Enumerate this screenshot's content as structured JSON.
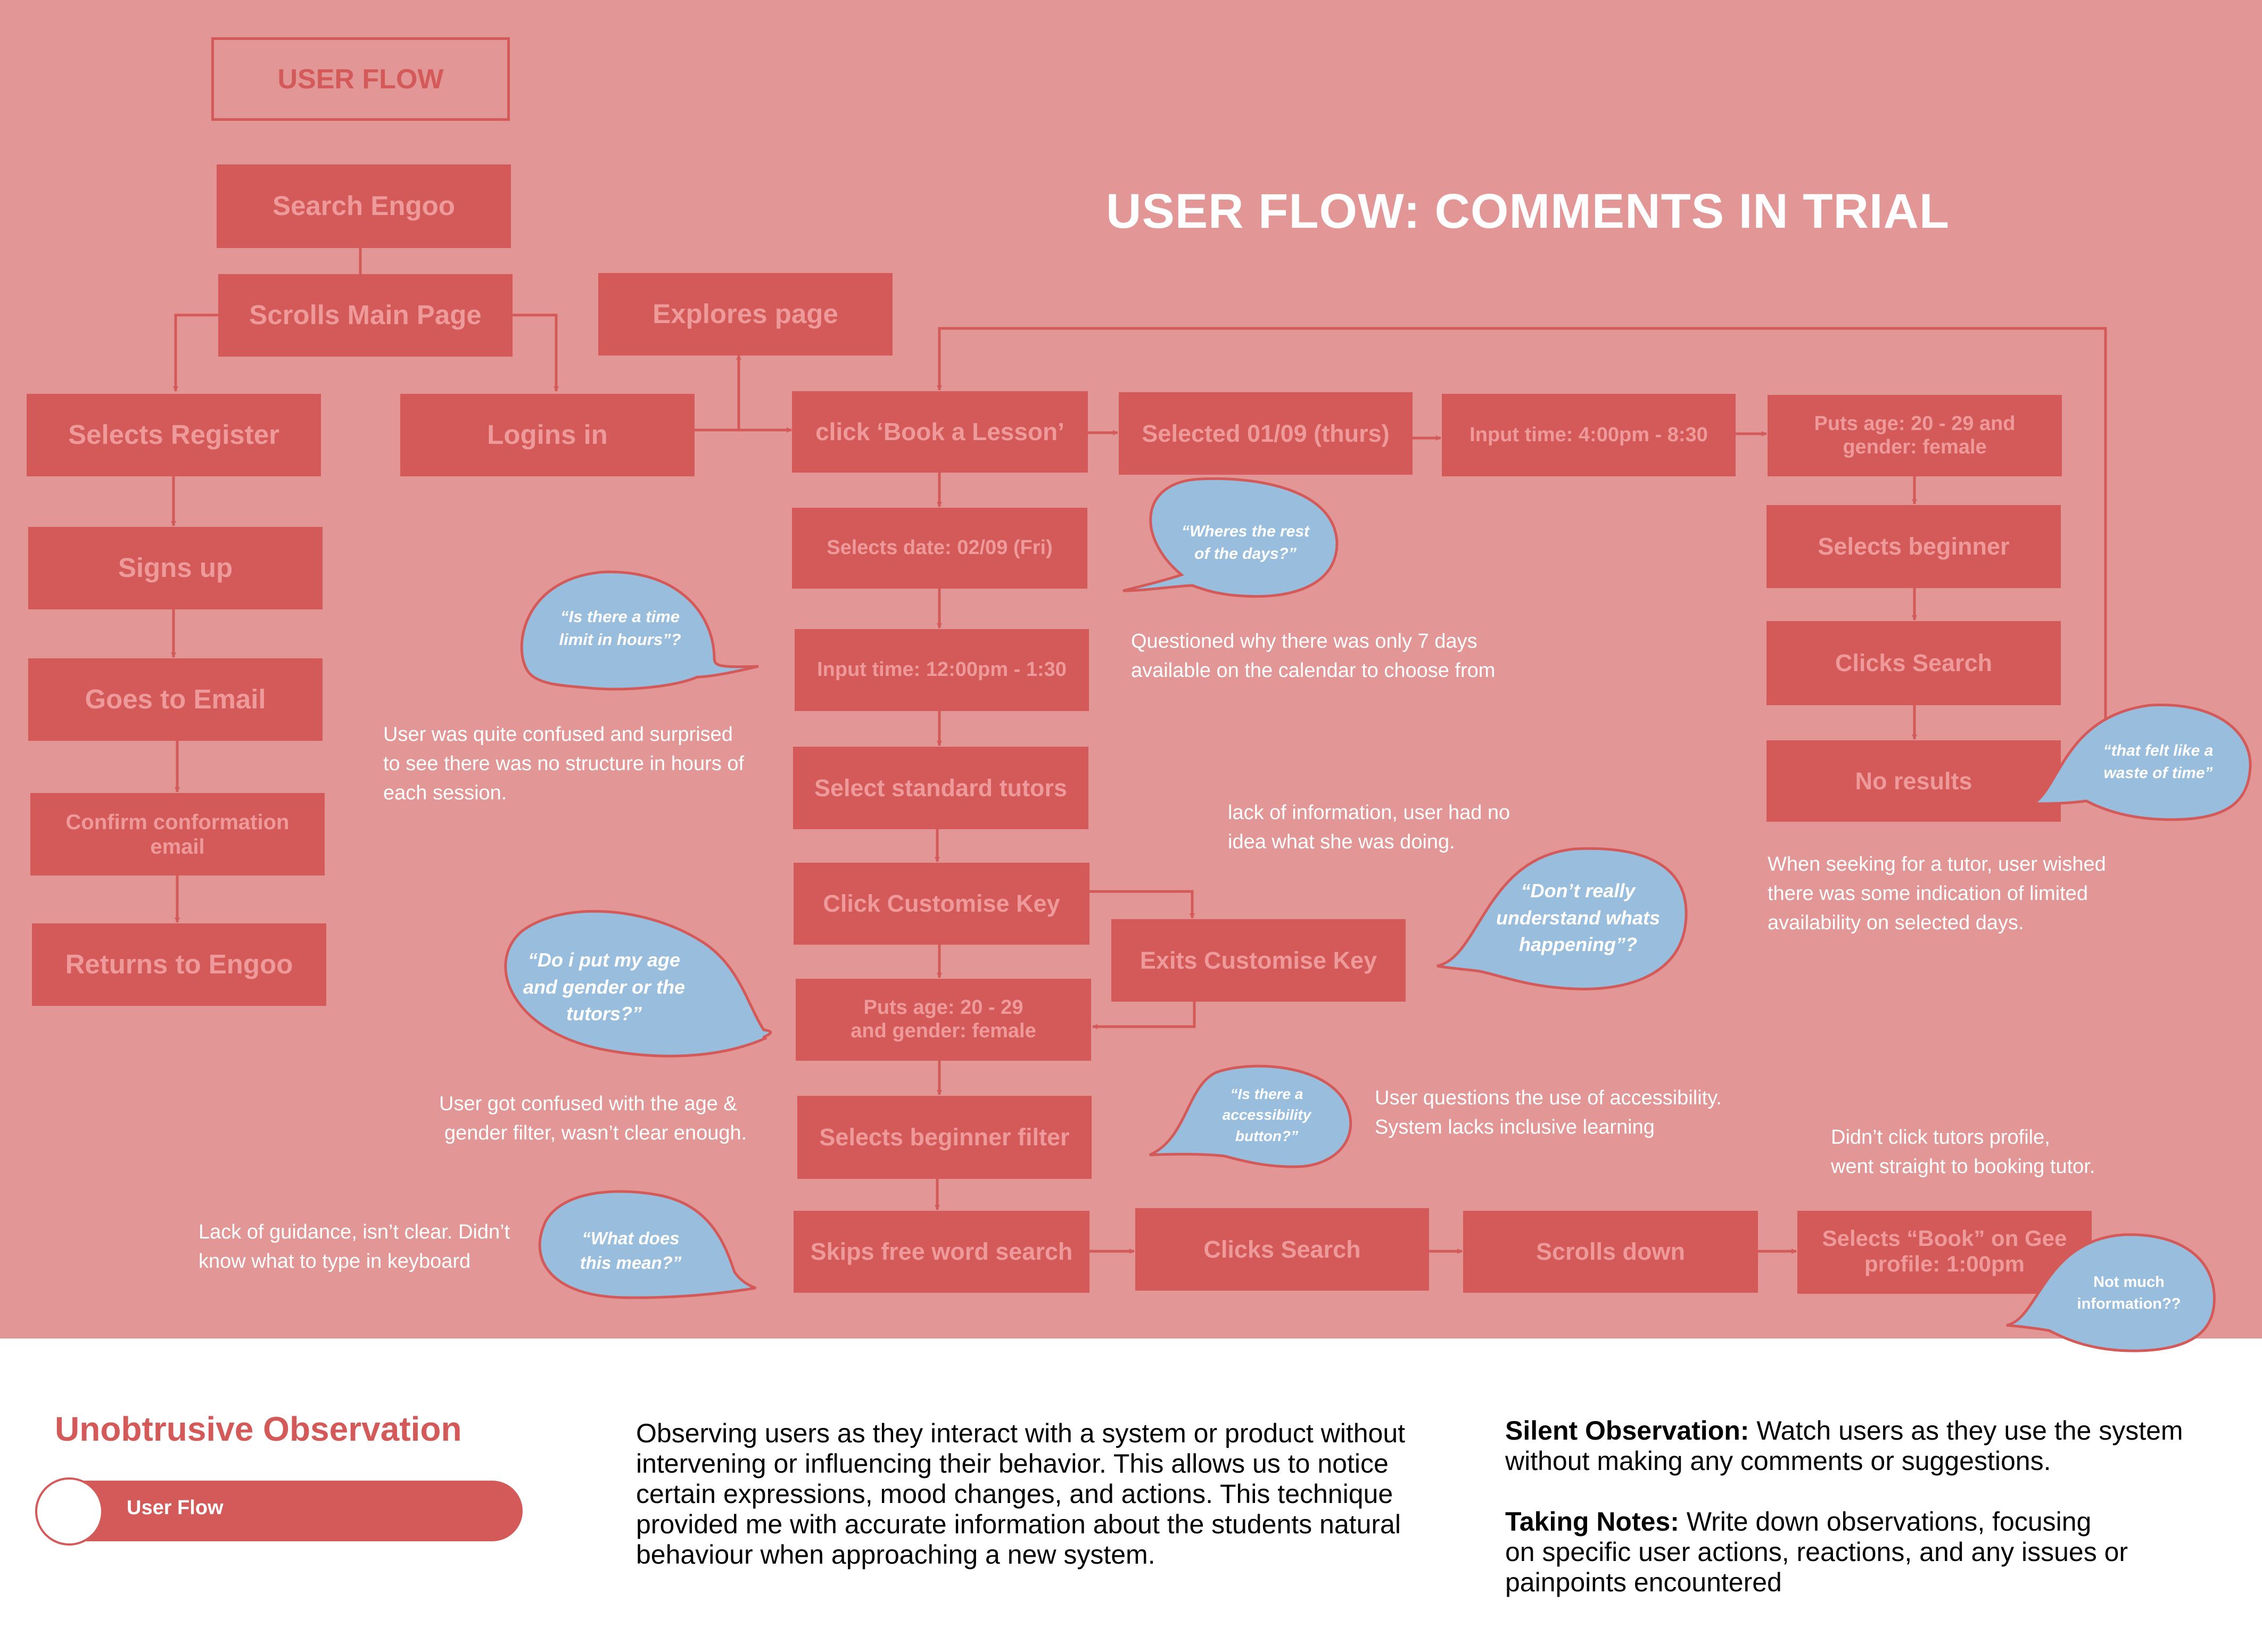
{
  "header": {
    "label_box": "USER FLOW",
    "title": "USER FLOW: COMMENTS IN TRIAL"
  },
  "colors": {
    "canvas": "#e29696",
    "box": "#d45a5a",
    "box_text": "#ee9a9a",
    "bubble": "#99bedd",
    "bubble_outline": "#d45a5a",
    "arrow": "#d45a5a",
    "note_text": "#ffffff"
  },
  "steps": {
    "search_engoo": "Search Engoo",
    "scrolls_main_page": "Scrolls Main Page",
    "explores_page": "Explores page",
    "selects_register": "Selects Register",
    "logins_in": "Logins in",
    "signs_up": "Signs up",
    "goes_to_email": "Goes to Email",
    "confirm_email": "Confirm conformation email",
    "returns_to_engoo": "Returns to Engoo",
    "click_book_lesson": "click ‘Book a Lesson’",
    "selected_0109": "Selected 01/09 (thurs)",
    "input_time_4": "Input time: 4:00pm - 8:30",
    "puts_age_right_1": "Puts age: 20 - 29 and",
    "puts_age_right_2": "gender: female",
    "selects_beginner": "Selects beginner",
    "clicks_search_right": "Clicks Search",
    "no_results": "No results",
    "selects_date_0209": "Selects date: 02/09 (Fri)",
    "input_time_12": "Input time: 12:00pm - 1:30",
    "select_standard_tutors": "Select standard tutors",
    "click_customise_key": "Click Customise Key",
    "exits_customise_key": "Exits Customise Key",
    "puts_age_center_1": "Puts age: 20 - 29",
    "puts_age_center_2": "and gender: female",
    "selects_beginner_filter": "Selects beginner filter",
    "skips_free_word_search": "Skips free word search",
    "clicks_search_bottom": "Clicks Search",
    "scrolls_down": "Scrolls down",
    "selects_book_gee_1": "Selects “Book” on Gee",
    "selects_book_gee_2": "profile: 1:00pm"
  },
  "bubbles": {
    "wheres_rest_1": "“Wheres the rest",
    "wheres_rest_2": "of the days?”",
    "time_limit_1": "“Is there a time",
    "time_limit_2": "limit in hours”?",
    "waste_of_time_1": "“that felt like a",
    "waste_of_time_2": "waste of time”",
    "dont_understand_1": "“Don’t really",
    "dont_understand_2": "understand whats",
    "dont_understand_3": "happening”?",
    "age_gender_1": "“Do i put my age",
    "age_gender_2": "and gender or the",
    "age_gender_3": "tutors?”",
    "accessibility_1": "“Is there a",
    "accessibility_2": "accessibility",
    "accessibility_3": "button?”",
    "what_mean_1": "“What does",
    "what_mean_2": "this mean?”",
    "not_much_1": "Not much",
    "not_much_2": "information??"
  },
  "notes": {
    "seven_days_1": "Questioned why there was only 7 days",
    "seven_days_2": "available on the calendar to choose from",
    "no_structure_1": "User was quite confused and surprised",
    "no_structure_2": "to see there was no structure in hours of",
    "no_structure_3": "each session.",
    "lack_info_1": "lack of information, user had no",
    "lack_info_2": "idea what she was doing.",
    "availability_1": "When seeking for a tutor, user wished",
    "availability_2": "there was some indication of limited",
    "availability_3": "availability on selected days.",
    "age_filter_1": "User got confused with the age &",
    "age_filter_2": "gender filter, wasn’t clear enough.",
    "accessibility_1": "User questions the use of accessibility.",
    "accessibility_2": "System lacks inclusive learning",
    "tutor_profile_1": "Didn’t click tutors profile,",
    "tutor_profile_2": "went straight to booking tutor.",
    "guidance_1": "Lack of guidance, isn’t clear. Didn’t",
    "guidance_2": "know what to type in keyboard"
  },
  "footer": {
    "title": "Unobtrusive Observation",
    "pill_label": "User Flow",
    "description_1": "Observing users as they interact with a system or product without",
    "description_2": "intervening or influencing their behavior. This allows us to notice",
    "description_3": "certain expressions, mood changes, and actions. This technique",
    "description_4": "provided me with accurate information about the students natural",
    "description_5": "behaviour when approaching a new system.",
    "silent_term": "Silent Observation:",
    "silent_text_1": " Watch users as they use the system",
    "silent_text_2": "without making any comments or suggestions.",
    "notes_term": "Taking Notes:",
    "notes_text_1": " Write down observations, focusing",
    "notes_text_2": "on specific user actions, reactions, and any issues or",
    "notes_text_3": "painpoints encountered"
  }
}
